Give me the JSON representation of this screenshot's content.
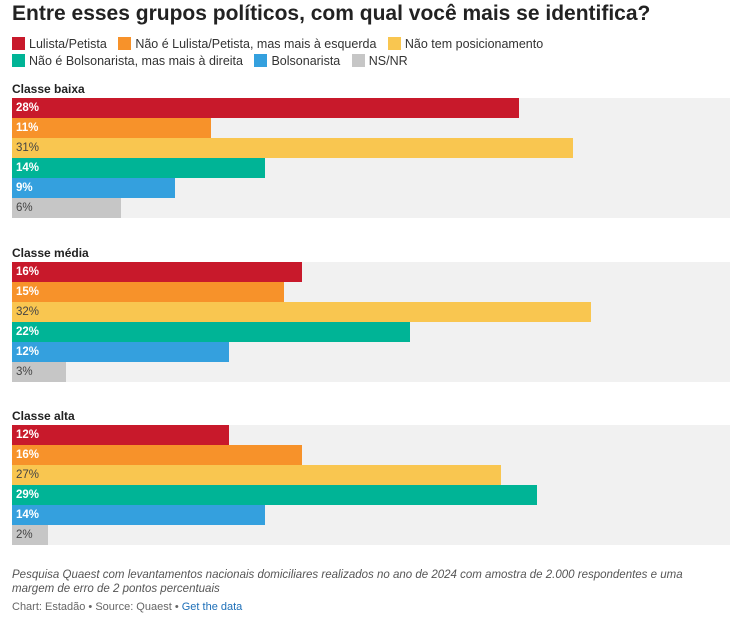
{
  "chart_data": {
    "type": "bar",
    "orientation": "horizontal",
    "title": "Entre esses grupos políticos, com qual você mais se identifica?",
    "xlim": [
      0,
      35
    ],
    "grid": false,
    "legend_position": "top",
    "categories": [
      "Lulista/Petista",
      "Não é Lulista/Petista, mas mais à esquerda",
      "Não tem posicionamento",
      "Não é Bolsonarista, mas mais à direita",
      "Bolsonarista",
      "NS/NR"
    ],
    "colors": [
      "#c8192b",
      "#f7922a",
      "#f9c650",
      "#00b496",
      "#34a0de",
      "#c6c6c6"
    ],
    "groups": [
      {
        "name": "Classe baixa",
        "values": [
          28,
          11,
          31,
          14,
          9,
          6
        ],
        "labels": [
          "28%",
          "11%",
          "31%",
          "14%",
          "9%",
          "6%"
        ]
      },
      {
        "name": "Classe média",
        "values": [
          16,
          15,
          32,
          22,
          12,
          3
        ],
        "labels": [
          "16%",
          "15%",
          "32%",
          "22%",
          "12%",
          "3%"
        ]
      },
      {
        "name": "Classe alta",
        "values": [
          12,
          16,
          27,
          29,
          14,
          2
        ],
        "labels": [
          "12%",
          "16%",
          "27%",
          "29%",
          "14%",
          "2%"
        ]
      }
    ]
  },
  "note": "Pesquisa Quaest com levantamentos nacionais domiciliares realizados no ano de 2024 com amostra de 2.000 respondentes e uma margem de erro de 2 pontos percentuais",
  "footer": {
    "credit": "Chart: Estadão • Source: Quaest • ",
    "link": "Get the data"
  }
}
